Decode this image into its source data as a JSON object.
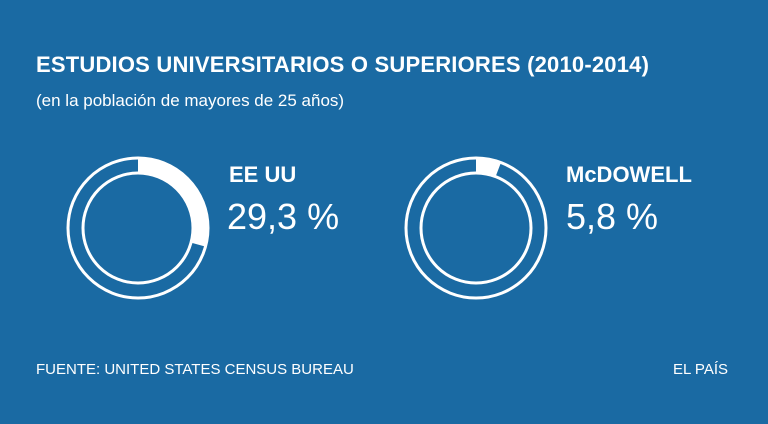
{
  "header": {
    "title": "ESTUDIOS UNIVERSITARIOS O SUPERIORES (2010-2014)",
    "subtitle": "(en la población de mayores de 25 años)"
  },
  "chart_data": {
    "type": "pie",
    "title": "ESTUDIOS UNIVERSITARIOS O SUPERIORES (2010-2014)",
    "subtitle": "(en la población de mayores de 25 años)",
    "unit": "%",
    "charts": [
      {
        "label": "EE UU",
        "value": 29.3,
        "value_text": "29,3 %"
      },
      {
        "label": "McDOWELL",
        "value": 5.8,
        "value_text": "5,8 %"
      }
    ],
    "colors": {
      "background": "#1a6aa3",
      "ring": "#ffffff"
    }
  },
  "footer": {
    "source": "FUENTE: UNITED STATES CENSUS BUREAU",
    "credit": "EL PAÍS"
  }
}
